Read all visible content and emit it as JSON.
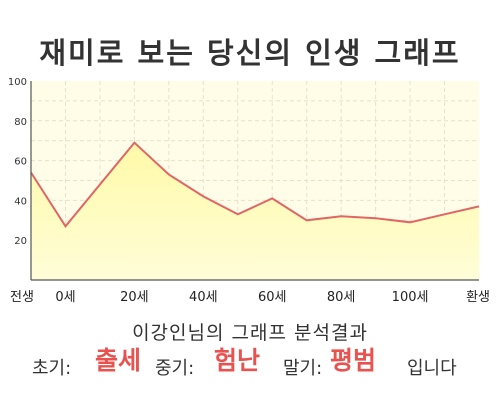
{
  "title": "재미로 보는 당신의 인생 그래프",
  "chart_data": {
    "type": "area",
    "categories": [
      "전생",
      "0세",
      "20세",
      "40세",
      "60세",
      "80세",
      "100세",
      "환생"
    ],
    "x": [
      "전생",
      "0세",
      "",
      "20세",
      "",
      "40세",
      "",
      "60세",
      "",
      "80세",
      "",
      "100세",
      "",
      "환생"
    ],
    "values": [
      54,
      27,
      48,
      69,
      53,
      42,
      33,
      41,
      30,
      32,
      31,
      29,
      33,
      37
    ],
    "ylim": [
      0,
      100
    ],
    "yticks": [
      20,
      40,
      60,
      80,
      100
    ],
    "grid": true,
    "colors": {
      "line": "#e06666",
      "fill_top": "#fffaa8",
      "fill_bottom": "#fffdd8",
      "plot_bg": "#fffde8",
      "grid": "#e6e2c8",
      "axis": "#555555"
    }
  },
  "summary": "이강인님의 그래프 분석결과",
  "result": {
    "early_label": "초기:",
    "early_value": "출세",
    "mid_label": "중기:",
    "mid_value": "험난",
    "late_label": "말기:",
    "late_value": "평범",
    "ending": "입니다"
  }
}
